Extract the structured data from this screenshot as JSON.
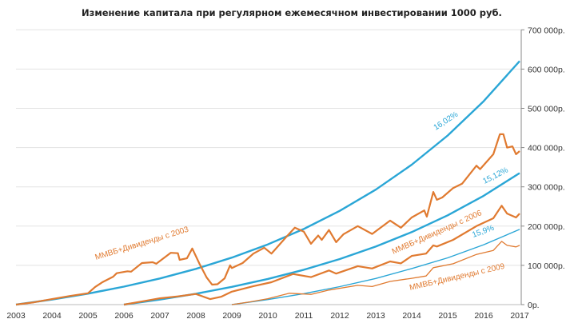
{
  "chart_data": {
    "type": "line",
    "title": "Изменение капитала при регулярном ежемесячном инвестировании 1000 руб.",
    "xlabel": "",
    "ylabel": "",
    "xlim": [
      2003,
      2017
    ],
    "ylim": [
      0,
      700000
    ],
    "grid": true,
    "legend": "none",
    "x_ticks": [
      "2003",
      "2004",
      "2005",
      "2006",
      "2007",
      "2008",
      "2009",
      "2010",
      "2011",
      "2012",
      "2013",
      "2014",
      "2015",
      "2016",
      "2017"
    ],
    "y_ticks": [
      "0р.",
      "100 000р.",
      "200 000р.",
      "300 000р.",
      "400 000р.",
      "500 000р.",
      "600 000р.",
      "700 000р."
    ],
    "colors": {
      "deposit": "#2aa6d6",
      "index": "#e07a30"
    },
    "series": [
      {
        "label": "16,02%",
        "kind": "deposit",
        "width": 2.4,
        "x": [
          2003,
          2004,
          2005,
          2006,
          2007,
          2008,
          2009,
          2010,
          2011,
          2012,
          2013,
          2014,
          2015,
          2016,
          2017
        ],
        "y": [
          0,
          12900,
          28000,
          45800,
          66700,
          91100,
          119700,
          153300,
          192700,
          238800,
          292900,
          356400,
          430800,
          518100,
          620300
        ]
      },
      {
        "label": "15,12%",
        "kind": "deposit",
        "width": 2.4,
        "x": [
          2006,
          2007,
          2008,
          2009,
          2010,
          2011,
          2012,
          2013,
          2014,
          2015,
          2016,
          2017
        ],
        "y": [
          0,
          12900,
          27800,
          45200,
          65400,
          88900,
          116100,
          147800,
          184700,
          227500,
          277200,
          335100
        ]
      },
      {
        "label": "15,9%",
        "kind": "deposit",
        "width": 1.4,
        "x": [
          2009,
          2010,
          2011,
          2012,
          2013,
          2014,
          2015,
          2016,
          2017
        ],
        "y": [
          0,
          12900,
          28000,
          45800,
          66500,
          91900,
          119200,
          152600,
          191600
        ]
      },
      {
        "label": "ММВБ+Дивиденды с 2003",
        "kind": "index",
        "width": 2.2,
        "x": [
          2003,
          2003.5,
          2004,
          2004.5,
          2005,
          2005.2,
          2005.4,
          2005.7,
          2005.8,
          2006.1,
          2006.2,
          2006.5,
          2006.8,
          2006.9,
          2007.3,
          2007.5,
          2007.55,
          2007.75,
          2007.9,
          2008.1,
          2008.3,
          2008.45,
          2008.6,
          2008.8,
          2008.95,
          2009.0,
          2009.3,
          2009.6,
          2009.8,
          2009.9,
          2010.1,
          2010.2,
          2010.5,
          2010.75,
          2011.0,
          2011.2,
          2011.4,
          2011.5,
          2011.7,
          2011.9,
          2012.1,
          2012.5,
          2012.9,
          2013.4,
          2013.7,
          2014.0,
          2014.35,
          2014.42,
          2014.6,
          2014.7,
          2014.85,
          2015.15,
          2015.4,
          2015.8,
          2015.9,
          2016.27,
          2016.45,
          2016.55,
          2016.65,
          2016.8,
          2016.9,
          2017.0
        ],
        "y": [
          0,
          6000,
          14000,
          22000,
          29000,
          45000,
          57000,
          71000,
          80000,
          85000,
          84000,
          106000,
          108000,
          104000,
          132000,
          131000,
          114000,
          118000,
          143000,
          104000,
          69000,
          51000,
          52000,
          67000,
          100000,
          93000,
          106000,
          130000,
          140000,
          145000,
          130000,
          140000,
          171000,
          196000,
          186000,
          155000,
          176000,
          165000,
          190000,
          159000,
          179000,
          200000,
          180000,
          214000,
          196000,
          222000,
          240000,
          224000,
          287000,
          267000,
          273000,
          297000,
          308000,
          354000,
          345000,
          383000,
          434000,
          434000,
          400000,
          403000,
          383000,
          391000
        ]
      },
      {
        "label": "ММВБ+Дивиденды с 2006",
        "kind": "index",
        "width": 2.2,
        "x": [
          2006,
          2006.5,
          2007,
          2007.5,
          2008,
          2008.4,
          2008.7,
          2009,
          2009.6,
          2010.1,
          2010.7,
          2011.2,
          2011.7,
          2011.9,
          2012.5,
          2012.9,
          2013.4,
          2013.7,
          2014.0,
          2014.4,
          2014.6,
          2014.7,
          2015.15,
          2015.8,
          2016.27,
          2016.5,
          2016.65,
          2016.9,
          2017.0
        ],
        "y": [
          0,
          8000,
          16000,
          21000,
          27000,
          14000,
          20000,
          33000,
          47000,
          57000,
          78000,
          70000,
          87000,
          79000,
          98000,
          92000,
          110000,
          105000,
          124000,
          130000,
          151000,
          148000,
          165000,
          200000,
          220000,
          252000,
          232000,
          222000,
          232000
        ]
      },
      {
        "label": "ММВБ+Дивиденды с 2009",
        "kind": "index",
        "width": 1.3,
        "x": [
          2009,
          2009.5,
          2010,
          2010.6,
          2011.2,
          2011.7,
          2012.5,
          2012.9,
          2013.4,
          2014.0,
          2014.4,
          2014.6,
          2015.15,
          2015.8,
          2016.27,
          2016.5,
          2016.65,
          2016.9,
          2017.0
        ],
        "y": [
          0,
          7000,
          15000,
          29000,
          26000,
          37000,
          49000,
          46000,
          59000,
          67000,
          73000,
          94000,
          104000,
          128000,
          138000,
          161000,
          151000,
          147000,
          151000
        ]
      }
    ]
  }
}
